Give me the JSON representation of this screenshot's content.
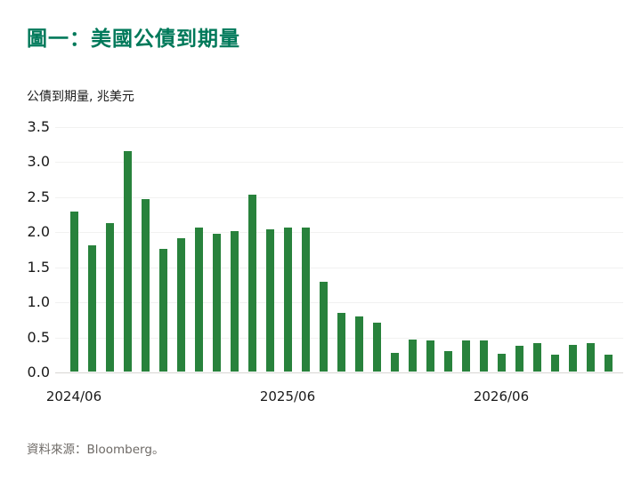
{
  "title": "圖一：美國公債到期量",
  "subtitle": "公債到期量, 兆美元",
  "source": "資料來源：Bloomberg。",
  "colors": {
    "title_green": "#00795a",
    "bar_green": "#28823c",
    "grid_gray": "#f1f1f0",
    "axis_gray": "#d8d6d3",
    "text_dark": "#1a1a1a",
    "source_gray": "#6e6a66"
  },
  "chart_data": {
    "type": "bar",
    "title": "圖一：美國公債到期量",
    "xlabel": "",
    "ylabel": "公債到期量, 兆美元",
    "categories": [
      "2024/06",
      "2024/07",
      "2024/08",
      "2024/09",
      "2024/10",
      "2024/11",
      "2024/12",
      "2025/01",
      "2025/02",
      "2025/03",
      "2025/04",
      "2025/05",
      "2025/06",
      "2025/07",
      "2025/08",
      "2025/09",
      "2025/10",
      "2025/11",
      "2025/12",
      "2026/01",
      "2026/02",
      "2026/03",
      "2026/04",
      "2026/05",
      "2026/06",
      "2026/07",
      "2026/08",
      "2026/09",
      "2026/10",
      "2026/11",
      "2026/12"
    ],
    "values": [
      2.28,
      1.8,
      2.12,
      3.15,
      2.46,
      1.75,
      1.9,
      2.06,
      1.96,
      2.0,
      2.52,
      2.03,
      2.05,
      2.06,
      1.28,
      0.84,
      0.79,
      0.7,
      0.27,
      0.46,
      0.44,
      0.29,
      0.45,
      0.44,
      0.25,
      0.37,
      0.4,
      0.24,
      0.38,
      0.4,
      0.24
    ],
    "ylim": [
      0,
      3.5
    ],
    "yticks": [
      0.0,
      0.5,
      1.0,
      1.5,
      2.0,
      2.5,
      3.0,
      3.5
    ],
    "xticks_shown": [
      "2024/06",
      "2025/06",
      "2026/06"
    ],
    "grid": "horizontal-only",
    "legend": "none",
    "bar_color": "#28823c",
    "unit": "兆美元 (trillion USD)"
  }
}
